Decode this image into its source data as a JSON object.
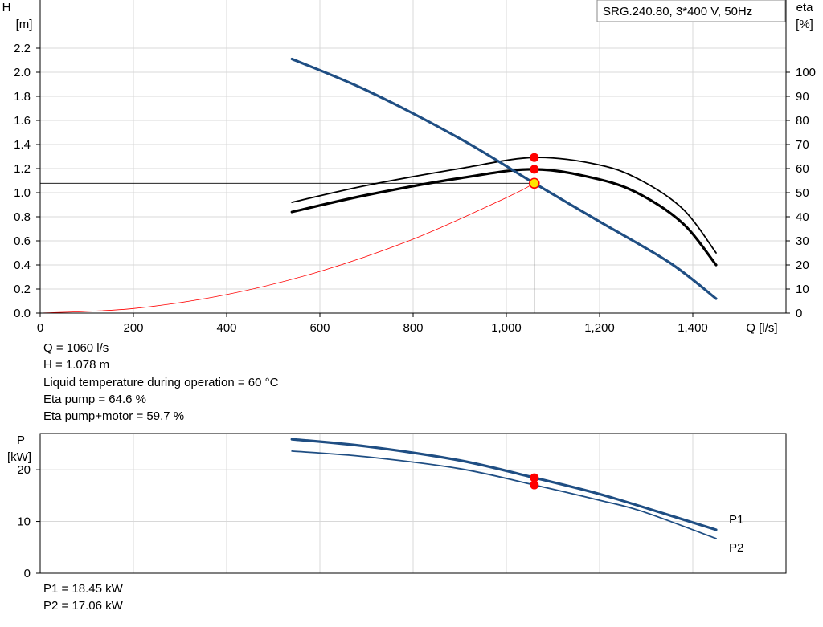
{
  "pump_label": "SRG.240.80, 3*400 V, 50Hz",
  "operating_point": {
    "lines": [
      "Q = 1060 l/s",
      "H = 1.078 m",
      "Liquid temperature during operation = 60 °C",
      "Eta pump = 64.6 %",
      "Eta pump+motor = 59.7 %"
    ]
  },
  "power_point": {
    "lines": [
      "P1 = 18.45 kW",
      "P2 = 17.06 kW"
    ]
  },
  "colors": {
    "curve": "#1f4e83",
    "system": "#ff0000",
    "marker": "#ff0000",
    "grid": "#d8d8d8"
  },
  "chart_data": [
    {
      "type": "line",
      "title": "SRG.240.80, 3*400 V, 50Hz",
      "xlabel": "Q [l/s]",
      "ylabel": "H [m]",
      "y2label": "eta [%]",
      "xlim": [
        0,
        1600
      ],
      "ylim": [
        0,
        2.2
      ],
      "y2lim": [
        0,
        110
      ],
      "x_ticks": [
        "0",
        "200",
        "400",
        "600",
        "800",
        "1,000",
        "1,200",
        "1,400"
      ],
      "y_ticks": [
        "0.0",
        "0.2",
        "0.4",
        "0.6",
        "0.8",
        "1.0",
        "1.2",
        "1.4",
        "1.6",
        "1.8",
        "2.0",
        "2.2"
      ],
      "y2_ticks": [
        "0",
        "10",
        "20",
        "30",
        "40",
        "50",
        "60",
        "70",
        "80",
        "90",
        "100"
      ],
      "grid": true,
      "series": [
        {
          "role": "head",
          "axis": "H",
          "x": [
            540,
            700,
            900,
            1060,
            1200,
            1350,
            1450
          ],
          "y": [
            2.11,
            1.85,
            1.45,
            1.078,
            0.76,
            0.42,
            0.12
          ]
        },
        {
          "role": "eta-pump",
          "axis": "eta",
          "x": [
            540,
            700,
            900,
            1060,
            1200,
            1290,
            1380,
            1450
          ],
          "y": [
            46,
            53,
            60,
            64.6,
            61.5,
            55,
            43,
            25
          ]
        },
        {
          "role": "eta-pump-motor",
          "axis": "eta",
          "x": [
            540,
            700,
            900,
            1060,
            1200,
            1290,
            1380,
            1450
          ],
          "y": [
            42,
            49,
            56,
            59.7,
            55.5,
            49,
            37,
            20
          ]
        },
        {
          "role": "system",
          "axis": "H",
          "x": [
            0,
            200,
            400,
            600,
            800,
            1000,
            1060
          ],
          "y": [
            0,
            0.038,
            0.154,
            0.346,
            0.614,
            0.959,
            1.078
          ]
        }
      ],
      "operating_point": {
        "q": 1060,
        "h": 1.078,
        "eta_pump": 64.6,
        "eta_total": 59.7
      }
    },
    {
      "type": "line",
      "ylabel": "P [kW]",
      "xlim": [
        0,
        1600
      ],
      "ylim": [
        0,
        27
      ],
      "y_ticks": [
        "0",
        "10",
        "20"
      ],
      "grid": true,
      "series": [
        {
          "name": "P1",
          "x": [
            540,
            700,
            900,
            1060,
            1200,
            1350,
            1450
          ],
          "y": [
            25.9,
            24.5,
            21.8,
            18.45,
            15.3,
            11.2,
            8.4
          ]
        },
        {
          "name": "P2",
          "x": [
            540,
            700,
            900,
            1060,
            1200,
            1290,
            1450
          ],
          "y": [
            23.6,
            22.5,
            20.2,
            17.06,
            14.1,
            12.0,
            6.7
          ]
        }
      ],
      "operating_point": {
        "q": 1060,
        "p1": 18.45,
        "p2": 17.06
      }
    }
  ]
}
